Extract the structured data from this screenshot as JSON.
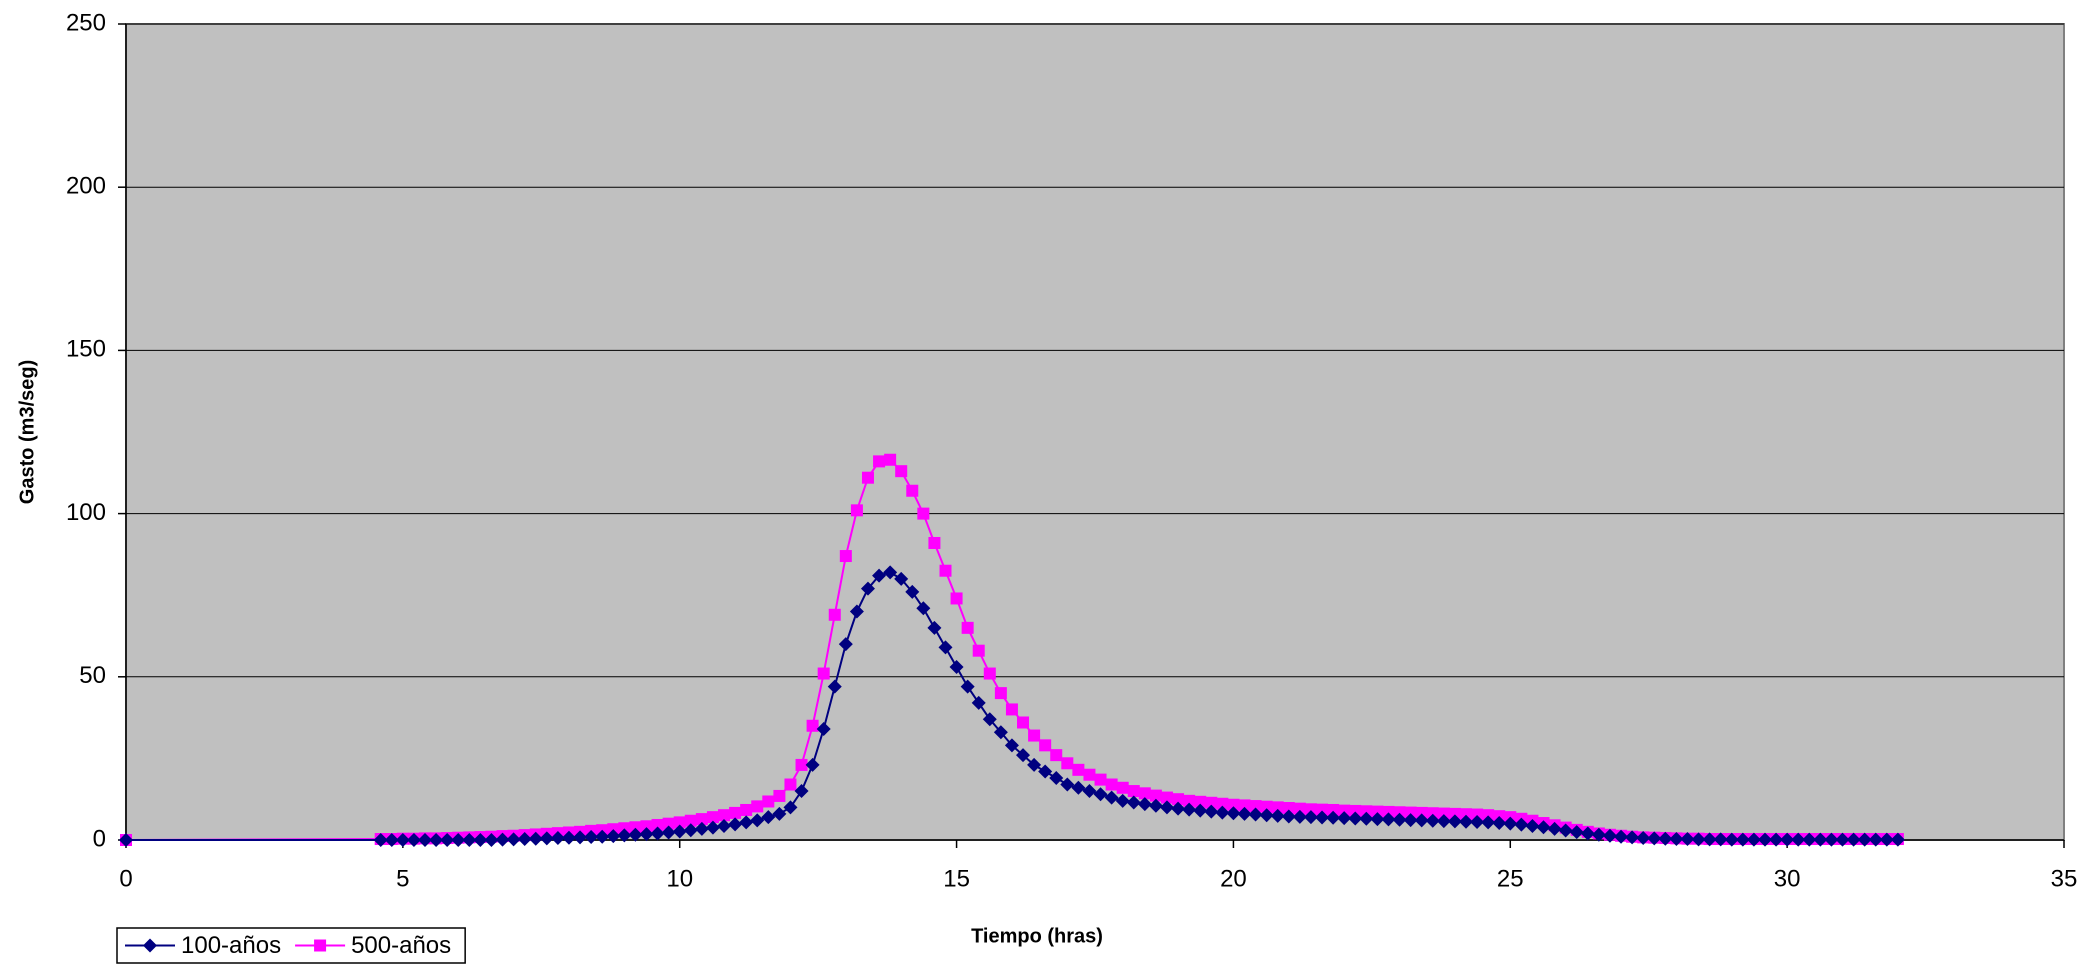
{
  "chart_data": {
    "type": "line",
    "xlabel": "Tiempo (hras)",
    "ylabel": "Gasto (m3/seg)",
    "x": [
      0,
      4.6,
      4.8,
      5,
      5.2,
      5.4,
      5.6,
      5.8,
      6,
      6.2,
      6.4,
      6.6,
      6.8,
      7,
      7.2,
      7.4,
      7.6,
      7.8,
      8,
      8.2,
      8.4,
      8.6,
      8.8,
      9,
      9.2,
      9.4,
      9.6,
      9.8,
      10,
      10.2,
      10.4,
      10.6,
      10.8,
      11,
      11.2,
      11.4,
      11.6,
      11.8,
      12,
      12.2,
      12.4,
      12.6,
      12.8,
      13,
      13.2,
      13.4,
      13.6,
      13.8,
      14,
      14.2,
      14.4,
      14.6,
      14.8,
      15,
      15.2,
      15.4,
      15.6,
      15.8,
      16,
      16.2,
      16.4,
      16.6,
      16.8,
      17,
      17.2,
      17.4,
      17.6,
      17.8,
      18,
      18.2,
      18.4,
      18.6,
      18.8,
      19,
      19.2,
      19.4,
      19.6,
      19.8,
      20,
      20.2,
      20.4,
      20.6,
      20.8,
      21,
      21.2,
      21.4,
      21.6,
      21.8,
      22,
      22.2,
      22.4,
      22.6,
      22.8,
      23,
      23.2,
      23.4,
      23.6,
      23.8,
      24,
      24.2,
      24.4,
      24.6,
      24.8,
      25,
      25.2,
      25.4,
      25.6,
      25.8,
      26,
      26.2,
      26.4,
      26.6,
      26.8,
      27,
      27.2,
      27.4,
      27.6,
      27.8,
      28,
      28.2,
      28.4,
      28.6,
      28.8,
      29,
      29.2,
      29.4,
      29.6,
      29.8,
      30,
      30.2,
      30.4,
      30.6,
      30.8,
      31,
      31.2,
      31.4,
      31.6,
      31.8,
      32
    ],
    "series": [
      {
        "name": "100-años",
        "color": "#000080",
        "marker": "diamond",
        "values": [
          0,
          0,
          0,
          0,
          0,
          0,
          0,
          0,
          0,
          0,
          0,
          0,
          0.1,
          0.2,
          0.3,
          0.4,
          0.5,
          0.6,
          0.7,
          0.8,
          0.9,
          1.0,
          1.2,
          1.4,
          1.6,
          1.8,
          2.0,
          2.3,
          2.6,
          3.0,
          3.4,
          3.8,
          4.3,
          4.8,
          5.4,
          6.0,
          7,
          8,
          10,
          15,
          23,
          34,
          47,
          60,
          70,
          77,
          81,
          82,
          80,
          76,
          71,
          65,
          59,
          53,
          47,
          42,
          37,
          33,
          29,
          26,
          23,
          21,
          19,
          17,
          16,
          15,
          14,
          13,
          12,
          11.5,
          11,
          10.5,
          10,
          9.6,
          9.3,
          9.0,
          8.7,
          8.4,
          8.2,
          8.0,
          7.8,
          7.6,
          7.4,
          7.2,
          7.1,
          7.0,
          6.9,
          6.8,
          6.7,
          6.6,
          6.5,
          6.4,
          6.3,
          6.2,
          6.1,
          6.0,
          5.9,
          5.8,
          5.7,
          5.6,
          5.5,
          5.4,
          5.2,
          5.0,
          4.7,
          4.3,
          3.9,
          3.4,
          2.9,
          2.4,
          2.0,
          1.6,
          1.3,
          1.0,
          0.8,
          0.6,
          0.5,
          0.4,
          0.3,
          0.3,
          0.2,
          0.2,
          0.2,
          0.1,
          0.1,
          0.1,
          0.1,
          0.1,
          0.1,
          0.1,
          0.1,
          0.1,
          0.1,
          0.1,
          0.1,
          0.1,
          0.1,
          0.1,
          0.1
        ]
      },
      {
        "name": "500-años",
        "color": "#ff00ff",
        "marker": "square",
        "values": [
          0,
          0.3,
          0.3,
          0.4,
          0.4,
          0.5,
          0.5,
          0.6,
          0.7,
          0.8,
          0.9,
          1.0,
          1.2,
          1.3,
          1.5,
          1.7,
          1.9,
          2.1,
          2.3,
          2.5,
          2.8,
          3.0,
          3.3,
          3.6,
          3.9,
          4.2,
          4.6,
          5.0,
          5.4,
          5.9,
          6.4,
          7.0,
          7.6,
          8.3,
          9.2,
          10.3,
          11.8,
          13.5,
          17,
          23,
          35,
          51,
          69,
          87,
          101,
          111,
          116,
          116.5,
          113,
          107,
          100,
          91,
          82.5,
          74,
          65,
          58,
          51,
          45,
          40,
          36,
          32,
          29,
          26,
          23.5,
          21.5,
          20,
          18.5,
          17,
          16,
          15,
          14.3,
          13.6,
          13,
          12.5,
          12,
          11.7,
          11.4,
          11.1,
          10.8,
          10.6,
          10.4,
          10.2,
          10.0,
          9.8,
          9.6,
          9.4,
          9.3,
          9.2,
          9.0,
          8.9,
          8.8,
          8.7,
          8.6,
          8.5,
          8.4,
          8.3,
          8.2,
          8.1,
          8.0,
          7.9,
          7.8,
          7.6,
          7.3,
          7.0,
          6.5,
          5.9,
          5.2,
          4.5,
          3.8,
          3.1,
          2.5,
          2.0,
          1.6,
          1.3,
          1.0,
          0.8,
          0.7,
          0.6,
          0.5,
          0.4,
          0.4,
          0.3,
          0.3,
          0.3,
          0.3,
          0.3,
          0.3,
          0.3,
          0.3,
          0.3,
          0.3,
          0.3,
          0.3,
          0.3,
          0.3,
          0.3,
          0.3,
          0.3,
          0.3
        ]
      }
    ],
    "xlim": [
      0,
      35
    ],
    "xticks": [
      0,
      5,
      10,
      15,
      20,
      25,
      30,
      35
    ],
    "ylim": [
      0,
      250
    ],
    "yticks": [
      0,
      50,
      100,
      150,
      200,
      250
    ],
    "grid": true,
    "legend": "bottom-left",
    "plot_background": "#c0c0c0"
  }
}
